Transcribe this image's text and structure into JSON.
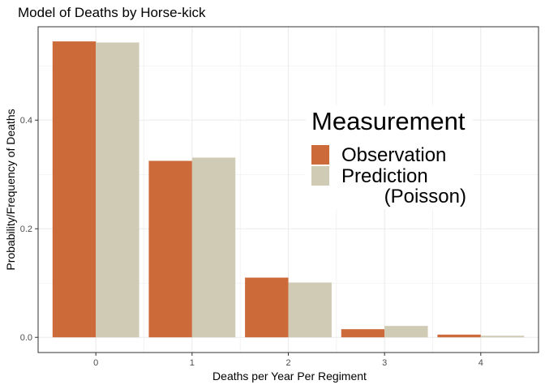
{
  "chart_data": {
    "type": "bar",
    "title": "Model of Deaths by Horse-kick",
    "xlabel": "Deaths per Year Per Regiment",
    "ylabel": "Probability/Frequency of Deaths",
    "categories": [
      "0",
      "1",
      "2",
      "3",
      "4"
    ],
    "series": [
      {
        "name": "Observation",
        "color": "#cc6a3a",
        "values": [
          0.545,
          0.325,
          0.11,
          0.015,
          0.005
        ]
      },
      {
        "name": "Prediction\n(Poisson)",
        "color": "#cfcbb5",
        "values": [
          0.543,
          0.331,
          0.101,
          0.021,
          0.003
        ]
      }
    ],
    "y_ticks": [
      "0.0",
      "0.2",
      "0.4"
    ],
    "ylim": [
      -0.028,
      0.572
    ],
    "legend": {
      "title": "Measurement",
      "position": "inside-right"
    },
    "grid": true
  }
}
